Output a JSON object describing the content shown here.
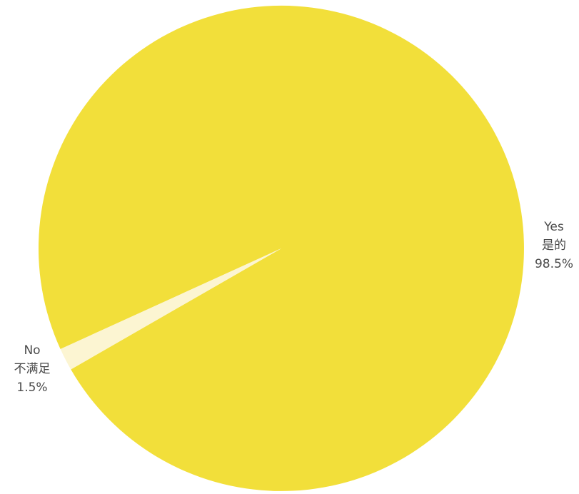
{
  "chart_data": {
    "type": "pie",
    "title": "",
    "slices": [
      {
        "name": "Yes",
        "name_zh": "是的",
        "percent_label": "98.5%",
        "value": 98.5,
        "color": "#F2DF3A"
      },
      {
        "name": "No",
        "name_zh": "不满足",
        "percent_label": "1.5%",
        "value": 1.5,
        "color": "#FCF5D2"
      }
    ]
  }
}
